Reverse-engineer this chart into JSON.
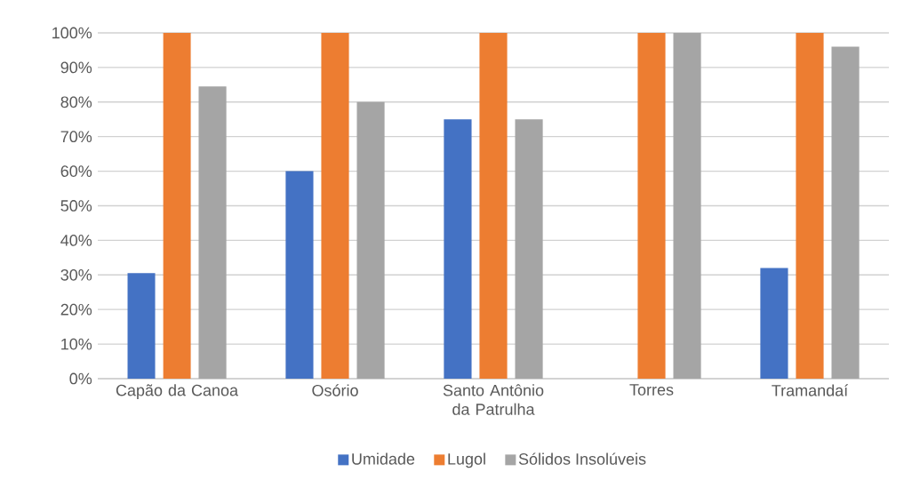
{
  "chart_data": {
    "type": "bar",
    "categories": [
      "Capão da Canoa",
      "Osório",
      "Santo Antônio da Patrulha",
      "Torres",
      "Tramandaí"
    ],
    "series": [
      {
        "name": "Umidade",
        "color": "#4472c4",
        "values": [
          30.5,
          60,
          75,
          0,
          32
        ]
      },
      {
        "name": "Lugol",
        "color": "#ed7d31",
        "values": [
          100,
          100,
          100,
          100,
          100
        ]
      },
      {
        "name": "Sólidos Insolúveis",
        "color": "#a5a5a5",
        "values": [
          84.5,
          80,
          75,
          100,
          96
        ]
      }
    ],
    "ylim": [
      0,
      100
    ],
    "yticks": [
      {
        "value": 0,
        "label": "0%"
      },
      {
        "value": 10,
        "label": "10%"
      },
      {
        "value": 20,
        "label": "20%"
      },
      {
        "value": 30,
        "label": "30%"
      },
      {
        "value": 40,
        "label": "40%"
      },
      {
        "value": 50,
        "label": "50%"
      },
      {
        "value": 60,
        "label": "60%"
      },
      {
        "value": 70,
        "label": "70%"
      },
      {
        "value": 80,
        "label": "80%"
      },
      {
        "value": 90,
        "label": "90%"
      },
      {
        "value": 100,
        "label": "100%"
      }
    ],
    "grid": "y",
    "legend": "bottom"
  }
}
